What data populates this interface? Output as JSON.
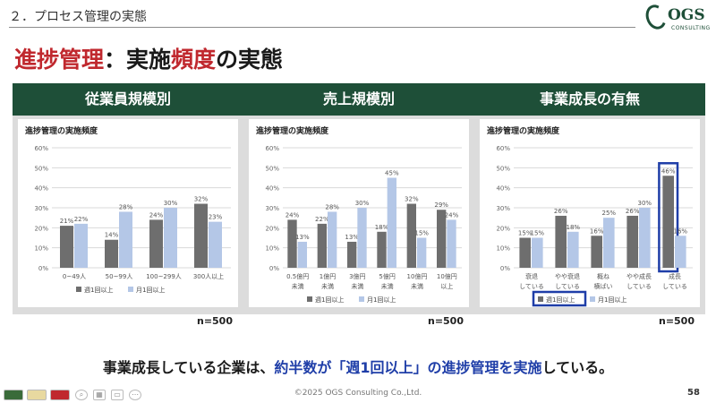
{
  "header": {
    "section_label": "２．プロセス管理の実態",
    "logo_text": "OGS",
    "logo_sub": "CONSULTING"
  },
  "title": {
    "part1": "進捗管理",
    "part2": "：実施",
    "part3": "頻度",
    "part4": "の実態"
  },
  "panels": [
    {
      "heading": "従業員規模別",
      "n": "n=500"
    },
    {
      "heading": "売上規模別",
      "n": "n=500"
    },
    {
      "heading": "事業成長の有無",
      "n": "n=500"
    }
  ],
  "colors": {
    "weekly": "#6e6e6e",
    "monthly": "#b4c7e7",
    "panel_header": "#1e4f38",
    "highlight": "#1f3ea8",
    "title_red": "#c0282e"
  },
  "chart_data": [
    {
      "type": "bar",
      "title": "進捗管理の実施頻度",
      "categories": [
        [
          "0~49人"
        ],
        [
          "50~99人"
        ],
        [
          "100~299人"
        ],
        [
          "300人以上"
        ]
      ],
      "series": [
        {
          "name": "週1回以上",
          "values": [
            21,
            14,
            24,
            32
          ]
        },
        {
          "name": "月1回以上",
          "values": [
            22,
            28,
            30,
            23
          ]
        }
      ],
      "ylim": [
        0,
        60
      ],
      "yticks": [
        "0%",
        "10%",
        "20%",
        "30%",
        "40%",
        "50%",
        "60%"
      ],
      "grid": true,
      "legend": "bottom"
    },
    {
      "type": "bar",
      "title": "進捗管理の実施頻度",
      "categories": [
        [
          "0.5億円",
          "未満"
        ],
        [
          "1億円",
          "未満"
        ],
        [
          "3億円",
          "未満"
        ],
        [
          "5億円",
          "未満"
        ],
        [
          "10億円",
          "未満"
        ],
        [
          "10億円",
          "以上"
        ]
      ],
      "series": [
        {
          "name": "週1回以上",
          "values": [
            24,
            22,
            13,
            18,
            32,
            29
          ]
        },
        {
          "name": "月1回以上",
          "values": [
            13,
            28,
            30,
            45,
            15,
            24
          ]
        }
      ],
      "ylim": [
        0,
        60
      ],
      "yticks": [
        "0%",
        "10%",
        "20%",
        "30%",
        "40%",
        "50%",
        "60%"
      ],
      "grid": true,
      "legend": "bottom"
    },
    {
      "type": "bar",
      "title": "進捗管理の実施頻度",
      "categories": [
        [
          "衰退",
          "している"
        ],
        [
          "やや衰退",
          "している"
        ],
        [
          "概ね",
          "横ばい"
        ],
        [
          "やや成長",
          "している"
        ],
        [
          "成長",
          "している"
        ]
      ],
      "series": [
        {
          "name": "週1回以上",
          "values": [
            15,
            26,
            16,
            26,
            46
          ]
        },
        {
          "name": "月1回以上",
          "values": [
            15,
            18,
            25,
            30,
            16
          ]
        }
      ],
      "ylim": [
        0,
        60
      ],
      "yticks": [
        "0%",
        "10%",
        "20%",
        "30%",
        "40%",
        "50%",
        "60%"
      ],
      "grid": true,
      "legend": "bottom",
      "highlight": {
        "series": 0,
        "category": 4
      }
    }
  ],
  "conclusion": {
    "part1": "事業成長している企業は、",
    "part2": "約半数が「週1回以上」の進捗管理を実施",
    "part3": "している。"
  },
  "footer": {
    "copyright": "©2025 OGS Consulting Co.,Ltd.",
    "page": "58"
  }
}
